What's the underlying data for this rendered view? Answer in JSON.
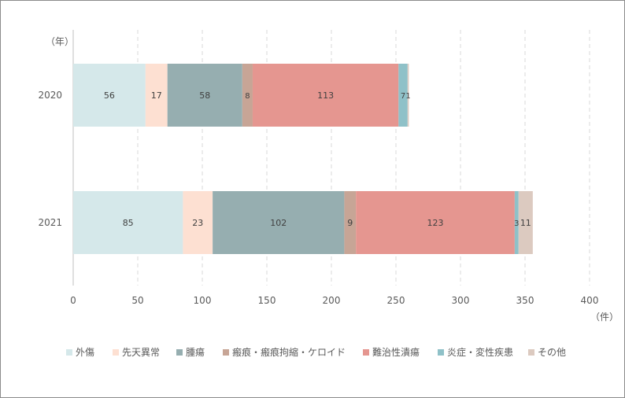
{
  "chart_data": {
    "type": "bar",
    "orientation": "horizontal",
    "stacked": true,
    "categories": [
      "2020",
      "2021"
    ],
    "y_unit_label": "（年）",
    "x_unit_label": "（件）",
    "xlim": [
      0,
      400
    ],
    "x_ticks": [
      0,
      50,
      100,
      150,
      200,
      250,
      300,
      350,
      400
    ],
    "grid": "vertical-dashed",
    "legend_position": "bottom",
    "series": [
      {
        "name": "外傷",
        "values": [
          56,
          85
        ],
        "color": "#d5e8ea",
        "labels": [
          "56",
          "85"
        ]
      },
      {
        "name": "先天異常",
        "values": [
          17,
          23
        ],
        "color": "#fde0d2",
        "labels": [
          "17",
          "23"
        ]
      },
      {
        "name": "腫瘍",
        "values": [
          58,
          102
        ],
        "color": "#96aeb0",
        "labels": [
          "58",
          "102"
        ]
      },
      {
        "name": "瘢痕・瘢痕拘縮・ケロイド",
        "values": [
          8,
          9
        ],
        "color": "#c7a596",
        "labels": [
          "8",
          "9"
        ]
      },
      {
        "name": "難治性潰瘍",
        "values": [
          113,
          123
        ],
        "color": "#e59690",
        "labels": [
          "113",
          "123"
        ]
      },
      {
        "name": "炎症・変性疾患",
        "values": [
          7,
          3
        ],
        "color": "#8fc1c8",
        "labels": [
          "7",
          "3"
        ]
      },
      {
        "name": "その他",
        "values": [
          1,
          11
        ],
        "color": "#dccac0",
        "labels": [
          "1",
          "11"
        ]
      }
    ]
  }
}
